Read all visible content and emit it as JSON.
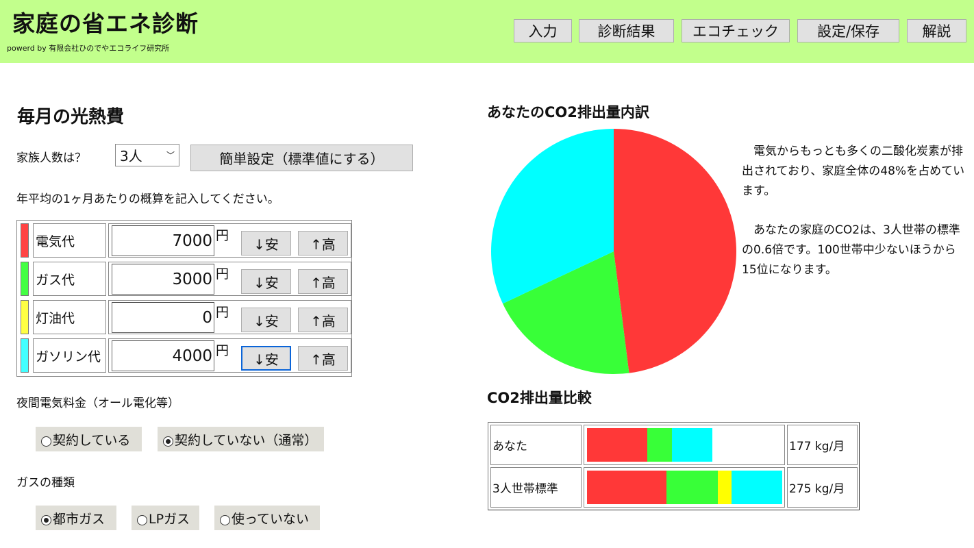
{
  "header": {
    "title": "家庭の省エネ診断",
    "powered": "powerd by 有限会社ひのでやエコライフ研究所",
    "nav": [
      "入力",
      "診断結果",
      "エコチェック",
      "設定/保存",
      "解説"
    ]
  },
  "left": {
    "title": "毎月の光熱費",
    "family_label": "家族人数は？",
    "family_value": "3人",
    "easy_button": "簡単設定（標準値にする）",
    "instruction": "年平均の1ヶ月あたりの概算を記入してください。",
    "costs": [
      {
        "label": "電気代",
        "value": "7000",
        "color": "#ff4444"
      },
      {
        "label": "ガス代",
        "value": "3000",
        "color": "#44ff44"
      },
      {
        "label": "灯油代",
        "value": "0",
        "color": "#ffff44"
      },
      {
        "label": "ガソリン代",
        "value": "4000",
        "color": "#44ffff"
      }
    ],
    "yen": "円",
    "down_label": "↓安",
    "up_label": "↑高",
    "night_label": "夜間電気料金（オール電化等）",
    "night_options": [
      "契約している",
      "契約していない（通常）"
    ],
    "night_selected": 1,
    "gas_label": "ガスの種類",
    "gas_options": [
      "都市ガス",
      "LPガス",
      "使っていない"
    ],
    "gas_selected": 0
  },
  "right": {
    "pie_title": "あなたのCO2排出量内訳",
    "comment1": "　電気からもっとも多くの二酸化炭素が排出されており、家庭全体の48%を占めています。",
    "comment2": "　あなたの家庭のCO2は、3人世帯の標準の0.6倍です。100世帯中少ないほうから15位になります。",
    "compare_title": "CO2排出量比較"
  },
  "chart_data": [
    {
      "type": "pie",
      "title": "あなたのCO2排出量内訳",
      "categories": [
        "電気",
        "ガス",
        "ガソリン"
      ],
      "values": [
        48,
        20,
        32
      ],
      "colors": [
        "#ff3838",
        "#38ff38",
        "#00ffff"
      ]
    },
    {
      "type": "bar",
      "orientation": "horizontal",
      "stacked": true,
      "title": "CO2排出量比較",
      "categories": [
        "あなた",
        "3人世帯標準"
      ],
      "totals": [
        "177 kg/月",
        "275 kg/月"
      ],
      "xlim": [
        0,
        275
      ],
      "series": [
        {
          "color": "#ff3838",
          "values": [
            85,
            112
          ]
        },
        {
          "color": "#38ff38",
          "values": [
            35,
            72
          ]
        },
        {
          "color": "#ffff00",
          "values": [
            0,
            20
          ]
        },
        {
          "color": "#00ffff",
          "values": [
            57,
            71
          ]
        }
      ]
    }
  ]
}
